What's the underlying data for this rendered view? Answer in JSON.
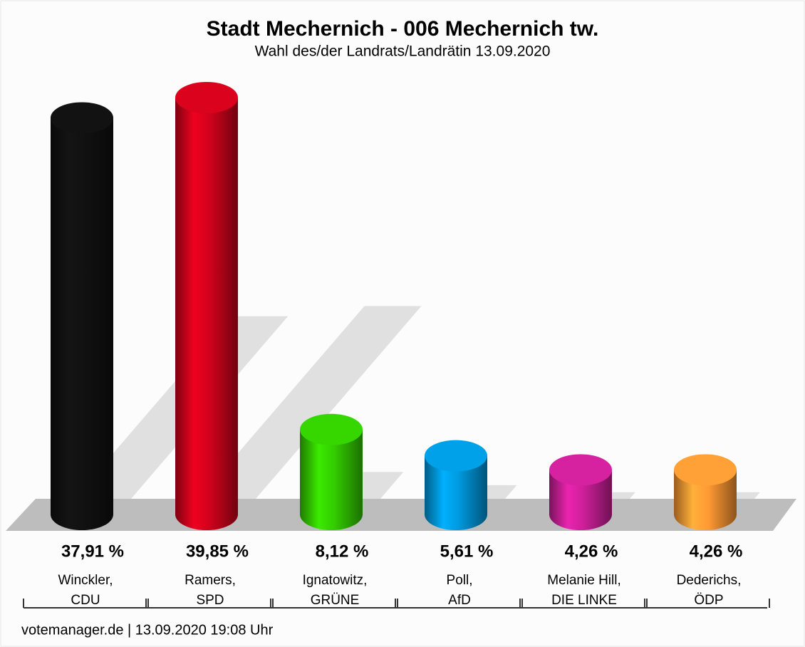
{
  "chart_data": {
    "type": "bar",
    "title": "Stadt Mechernich - 006 Mechernich tw.",
    "subtitle": "Wahl des/der Landrats/Landrätin 13.09.2020",
    "categories": [
      [
        "Winckler,",
        "CDU"
      ],
      [
        "Ramers,",
        "SPD"
      ],
      [
        "Ignatowitz,",
        "GRÜNE"
      ],
      [
        "Poll,",
        "AfD"
      ],
      [
        "Melanie Hill,",
        "DIE LINKE"
      ],
      [
        "Dederichs,",
        "ÖDP"
      ]
    ],
    "values": [
      37.91,
      39.85,
      8.12,
      5.61,
      4.26,
      4.26
    ],
    "value_labels": [
      "37,91 %",
      "39,85 %",
      "8,12 %",
      "5,61 %",
      "4,26 %",
      "4,26 %"
    ],
    "colors": [
      "#111111",
      "#d0021b",
      "#33cc00",
      "#0099dd",
      "#cc1f99",
      "#ff9933"
    ],
    "footer": "votemanager.de | 13.09.2020 19:08 Uhr"
  }
}
